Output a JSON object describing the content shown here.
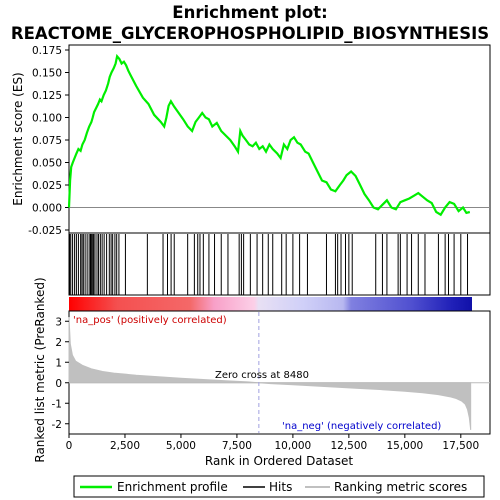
{
  "title_line1": "Enrichment plot:",
  "title_line2": "REACTOME_GLYCEROPHOSPHOLIPID_BIOSYNTHESIS",
  "colors": {
    "es_line": "#00ee00",
    "hit": "#000000",
    "metric_fill": "#c0c0c0",
    "zero_line": "#888888",
    "crossing_line": "#a0a0e0",
    "pos_text": "#cc0000",
    "neg_text": "#0000cc"
  },
  "chart_data": [
    {
      "type": "line",
      "name": "enrichment-profile",
      "ylabel": "Enrichment score (ES)",
      "xlim": [
        0,
        18000
      ],
      "ylim": [
        -0.025,
        0.175
      ],
      "yticks": [
        "0.175",
        "0.150",
        "0.125",
        "0.100",
        "0.075",
        "0.050",
        "0.025",
        "0.000",
        "-0.025"
      ],
      "ytick_values": [
        0.175,
        0.15,
        0.125,
        0.1,
        0.075,
        0.05,
        0.025,
        0.0,
        -0.025
      ],
      "x": [
        0,
        50,
        100,
        170,
        250,
        330,
        420,
        520,
        600,
        700,
        800,
        900,
        1000,
        1060,
        1120,
        1200,
        1300,
        1380,
        1450,
        1550,
        1650,
        1750,
        1820,
        1900,
        2000,
        2080,
        2150,
        2250,
        2350,
        2450,
        2550,
        2650,
        2750,
        3000,
        3300,
        3550,
        3800,
        4100,
        4250,
        4350,
        4450,
        4550,
        4700,
        4900,
        5100,
        5300,
        5500,
        5650,
        5800,
        5950,
        6100,
        6250,
        6400,
        6600,
        6800,
        7000,
        7200,
        7400,
        7550,
        7650,
        7750,
        7900,
        8050,
        8200,
        8350,
        8500,
        8650,
        8800,
        8950,
        9100,
        9300,
        9450,
        9600,
        9750,
        9900,
        10050,
        10200,
        10350,
        10550,
        10700,
        10900,
        11100,
        11300,
        11500,
        11700,
        11900,
        12100,
        12250,
        12400,
        12600,
        12800,
        13000,
        13200,
        13400,
        13600,
        13800,
        14000,
        14200,
        14400,
        14600,
        14800,
        15000,
        15200,
        15400,
        15600,
        15800,
        16000,
        16200,
        16400,
        16600,
        16800,
        17000,
        17200,
        17400,
        17600,
        17750,
        17900
      ],
      "y": [
        0.0,
        0.03,
        0.045,
        0.05,
        0.055,
        0.06,
        0.065,
        0.063,
        0.07,
        0.075,
        0.083,
        0.09,
        0.095,
        0.1,
        0.106,
        0.11,
        0.115,
        0.12,
        0.118,
        0.125,
        0.13,
        0.138,
        0.145,
        0.15,
        0.155,
        0.16,
        0.168,
        0.165,
        0.16,
        0.162,
        0.158,
        0.152,
        0.147,
        0.135,
        0.122,
        0.115,
        0.103,
        0.095,
        0.09,
        0.1,
        0.113,
        0.118,
        0.112,
        0.105,
        0.098,
        0.09,
        0.085,
        0.095,
        0.1,
        0.105,
        0.1,
        0.098,
        0.09,
        0.094,
        0.085,
        0.08,
        0.075,
        0.068,
        0.062,
        0.085,
        0.08,
        0.075,
        0.07,
        0.068,
        0.072,
        0.065,
        0.068,
        0.062,
        0.07,
        0.065,
        0.06,
        0.055,
        0.07,
        0.065,
        0.075,
        0.078,
        0.072,
        0.07,
        0.062,
        0.06,
        0.05,
        0.04,
        0.03,
        0.028,
        0.02,
        0.018,
        0.025,
        0.03,
        0.036,
        0.04,
        0.035,
        0.025,
        0.015,
        0.008,
        0.0,
        -0.002,
        0.003,
        0.008,
        0.0,
        -0.002,
        0.006,
        0.008,
        0.01,
        0.013,
        0.016,
        0.012,
        0.008,
        0.005,
        -0.005,
        -0.008,
        0.0,
        0.006,
        0.004,
        -0.004,
        0.0,
        -0.006,
        -0.005
      ]
    },
    {
      "type": "scatter",
      "name": "hits",
      "x": [
        30,
        80,
        160,
        250,
        330,
        420,
        520,
        580,
        640,
        720,
        810,
        900,
        960,
        1010,
        1060,
        1100,
        1160,
        1250,
        1320,
        1400,
        1480,
        1570,
        1680,
        1800,
        1880,
        1950,
        2050,
        2130,
        2230,
        2520,
        3500,
        4200,
        4400,
        4560,
        4700,
        5300,
        5600,
        5750,
        5850,
        6000,
        6250,
        6500,
        6800,
        7100,
        7600,
        7700,
        7800,
        8100,
        8400,
        8650,
        8900,
        9100,
        9500,
        9700,
        10000,
        10300,
        10650,
        11500,
        11900,
        12000,
        12150,
        12350,
        12500,
        12650,
        13700,
        14000,
        14200,
        14700,
        14800,
        15100,
        15300,
        15600,
        15900,
        16500,
        16800,
        16950,
        17200,
        17500,
        17800
      ]
    },
    {
      "type": "area",
      "name": "ranked-list-metric",
      "ylabel": "Ranked list metric (PreRanked)",
      "xlabel": "Rank in Ordered Dataset",
      "xlim": [
        0,
        18000
      ],
      "ylim": [
        -2.5,
        3.5
      ],
      "yticks": [
        "3",
        "2",
        "1",
        "0",
        "-1",
        "-2"
      ],
      "ytick_values": [
        3,
        2,
        1,
        0,
        -1,
        -2
      ],
      "xticks": [
        "0",
        "2,500",
        "5,000",
        "7,500",
        "10,000",
        "12,500",
        "15,000",
        "17,500"
      ],
      "xtick_values": [
        0,
        2500,
        5000,
        7500,
        10000,
        12500,
        15000,
        17500
      ],
      "x": [
        0,
        60,
        150,
        300,
        600,
        1000,
        1500,
        2000,
        3000,
        4000,
        5000,
        6000,
        7000,
        8000,
        8480,
        9000,
        10000,
        11000,
        12000,
        13000,
        14000,
        15000,
        15800,
        16500,
        17000,
        17300,
        17550,
        17700,
        17800,
        17880,
        17940
      ],
      "y": [
        3.2,
        1.9,
        1.35,
        1.05,
        0.85,
        0.68,
        0.55,
        0.47,
        0.37,
        0.29,
        0.22,
        0.16,
        0.1,
        0.04,
        0.0,
        -0.04,
        -0.1,
        -0.16,
        -0.22,
        -0.28,
        -0.34,
        -0.41,
        -0.49,
        -0.58,
        -0.68,
        -0.77,
        -0.9,
        -1.05,
        -1.3,
        -1.7,
        -2.3
      ]
    }
  ],
  "annotations": {
    "pos_label": "'na_pos' (positively correlated)",
    "neg_label": "'na_neg' (negatively correlated)",
    "zero_cross_label": "Zero cross at 8480",
    "zero_cross_value": 8480
  },
  "legend": {
    "items": [
      {
        "label": "Enrichment profile"
      },
      {
        "label": "Hits"
      },
      {
        "label": "Ranking metric scores"
      }
    ]
  }
}
